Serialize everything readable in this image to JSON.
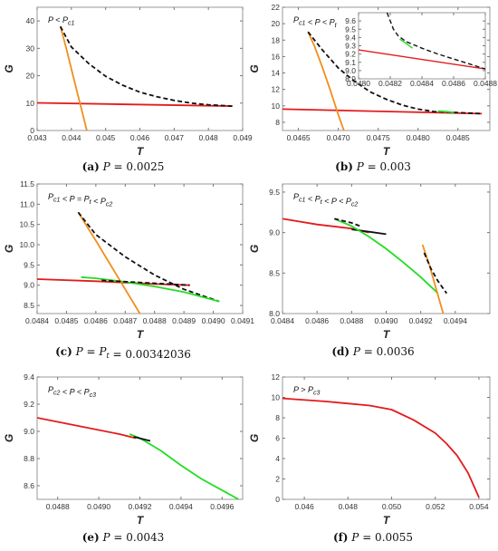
{
  "colors": {
    "red": "#e41a1c",
    "orange": "#f28e1c",
    "green": "#22dd22",
    "black": "#111111",
    "frame": "#999999"
  },
  "chart_data": [
    {
      "type": "line",
      "panel": "a",
      "caption": {
        "letter": "(a)",
        "text": "P = 0.0025"
      },
      "annotation": "P < Pc1",
      "xlabel": "T",
      "ylabel": "G",
      "xlim": [
        0.043,
        0.049
      ],
      "ylim": [
        0,
        45
      ],
      "xticks": [
        "0.043",
        "0.044",
        "0.045",
        "0.046",
        "0.047",
        "0.048",
        "0.049"
      ],
      "yticks": [
        "0",
        "10",
        "20",
        "30",
        "40"
      ],
      "series": [
        {
          "color": "red",
          "dash": false,
          "x": [
            0.043,
            0.0487
          ],
          "y": [
            10.1,
            8.9
          ]
        },
        {
          "color": "orange",
          "dash": false,
          "x": [
            0.04368,
            0.04385,
            0.044,
            0.04415,
            0.0443,
            0.04445
          ],
          "y": [
            38,
            30,
            22.5,
            15,
            7.5,
            0
          ]
        },
        {
          "color": "black",
          "dash": true,
          "x": [
            0.04368,
            0.044,
            0.0445,
            0.045,
            0.0455,
            0.046,
            0.0465,
            0.047,
            0.0475,
            0.048,
            0.0487
          ],
          "y": [
            38,
            30.5,
            24.5,
            19.8,
            16.5,
            14,
            12.3,
            11,
            10,
            9.4,
            8.9
          ]
        }
      ]
    },
    {
      "type": "line",
      "panel": "b",
      "caption": {
        "letter": "(b)",
        "text": "P = 0.003"
      },
      "annotation": "Pc1 < P < Pt",
      "xlabel": "T",
      "ylabel": "G",
      "xlim": [
        0.0463,
        0.0489
      ],
      "ylim": [
        7,
        22
      ],
      "xticks": [
        "0.0465",
        "0.0470",
        "0.0475",
        "0.0480",
        "0.0485"
      ],
      "yticks": [
        "8",
        "10",
        "12",
        "14",
        "16",
        "18",
        "20",
        "22"
      ],
      "series": [
        {
          "color": "red",
          "dash": false,
          "x": [
            0.0463,
            0.0488
          ],
          "y": [
            9.6,
            9.05
          ]
        },
        {
          "color": "orange",
          "dash": false,
          "x": [
            0.04662,
            0.0467,
            0.0468,
            0.0469,
            0.047,
            0.04707
          ],
          "y": [
            19,
            17.3,
            14.7,
            11.9,
            8.9,
            7
          ]
        },
        {
          "color": "black",
          "dash": true,
          "x": [
            0.04662,
            0.0468,
            0.047,
            0.0472,
            0.0474,
            0.0476,
            0.0478,
            0.048,
            0.0482,
            0.0488
          ],
          "y": [
            19,
            16.8,
            14.6,
            13,
            11.7,
            10.8,
            10.1,
            9.6,
            9.3,
            9.05
          ]
        },
        {
          "color": "green",
          "dash": false,
          "x": [
            0.04825,
            0.04835,
            0.04845
          ],
          "y": [
            9.35,
            9.3,
            9.2
          ]
        }
      ],
      "inset": {
        "xlim": [
          0.048,
          0.0488
        ],
        "ylim": [
          8.9,
          9.7
        ],
        "xticks": [
          "0.0480",
          "0.0482",
          "0.0484",
          "0.0486",
          "0.0488"
        ],
        "yticks": [
          "8.9",
          "9.0",
          "9.1",
          "9.2",
          "9.3",
          "9.4",
          "9.5",
          "9.6"
        ],
        "series": [
          {
            "color": "red",
            "dash": false,
            "x": [
              0.048,
              0.0488
            ],
            "y": [
              9.25,
              9.02
            ]
          },
          {
            "color": "black",
            "dash": true,
            "x": [
              0.04818,
              0.0482,
              0.04822,
              0.04825,
              0.0483,
              0.0484,
              0.0485,
              0.0486,
              0.0487,
              0.0488
            ],
            "y": [
              9.7,
              9.6,
              9.5,
              9.42,
              9.35,
              9.27,
              9.2,
              9.14,
              9.08,
              9.02
            ]
          },
          {
            "color": "green",
            "dash": false,
            "x": [
              0.04826,
              0.0483,
              0.04834
            ],
            "y": [
              9.38,
              9.33,
              9.27
            ]
          }
        ]
      }
    },
    {
      "type": "line",
      "panel": "c",
      "caption": {
        "letter": "(c)",
        "text": "P = Pt = 0.00342036"
      },
      "annotation": "Pc1 < P = Pt < Pc2",
      "xlabel": "T",
      "ylabel": "G",
      "xlim": [
        0.0484,
        0.0491
      ],
      "ylim": [
        8.3,
        11.5
      ],
      "xticks": [
        "0.0484",
        "0.0485",
        "0.0486",
        "0.0487",
        "0.0488",
        "0.0489",
        "0.0490",
        "0.0491"
      ],
      "yticks": [
        "8.5",
        "9.0",
        "9.5",
        "10.0",
        "10.5",
        "11.0",
        "11.5"
      ],
      "series": [
        {
          "color": "red",
          "dash": false,
          "x": [
            0.0484,
            0.0486,
            0.0488,
            0.04892
          ],
          "y": [
            9.15,
            9.1,
            9.03,
            9.0
          ]
        },
        {
          "color": "orange",
          "dash": false,
          "x": [
            0.04854,
            0.0486,
            0.04865,
            0.0487,
            0.04875
          ],
          "y": [
            10.8,
            10.1,
            9.5,
            8.9,
            8.3
          ]
        },
        {
          "color": "black",
          "dash": true,
          "x": [
            0.04854,
            0.0486,
            0.0487,
            0.0488,
            0.0489,
            0.04902
          ],
          "y": [
            10.8,
            10.25,
            9.7,
            9.25,
            8.9,
            8.6
          ]
        },
        {
          "color": "green",
          "dash": false,
          "x": [
            0.04855,
            0.0486,
            0.0487,
            0.0488,
            0.0489,
            0.04902
          ],
          "y": [
            9.2,
            9.17,
            9.08,
            8.97,
            8.83,
            8.6
          ]
        },
        {
          "color": "black",
          "dash": true,
          "x": [
            0.04862,
            0.04892
          ],
          "y": [
            9.12,
            9.0
          ]
        }
      ]
    },
    {
      "type": "line",
      "panel": "d",
      "caption": {
        "letter": "(d)",
        "text": "P = 0.0036"
      },
      "annotation": "Pc1 < Pt < P < Pc2",
      "xlabel": "T",
      "ylabel": "G",
      "xlim": [
        0.0484,
        0.0496
      ],
      "ylim": [
        8.0,
        9.6
      ],
      "xticks": [
        "0.0484",
        "0.0486",
        "0.0488",
        "0.0490",
        "0.0492",
        "0.0494"
      ],
      "yticks": [
        "8.0",
        "8.5",
        "9.0",
        "9.5"
      ],
      "series": [
        {
          "color": "red",
          "dash": false,
          "x": [
            0.0484,
            0.0486,
            0.0488,
            0.0489
          ],
          "y": [
            9.17,
            9.1,
            9.05,
            9.0
          ]
        },
        {
          "color": "black",
          "dash": false,
          "x": [
            0.0488,
            0.0489,
            0.049
          ],
          "y": [
            9.04,
            9.01,
            8.98
          ]
        },
        {
          "color": "green",
          "dash": false,
          "x": [
            0.0487,
            0.0488,
            0.0489,
            0.049,
            0.0491,
            0.0492,
            0.0493
          ],
          "y": [
            9.17,
            9.08,
            8.95,
            8.8,
            8.63,
            8.45,
            8.25
          ]
        },
        {
          "color": "black",
          "dash": true,
          "x": [
            0.0487,
            0.0488,
            0.04885
          ],
          "y": [
            9.17,
            9.12,
            9.08
          ]
        },
        {
          "color": "orange",
          "dash": false,
          "x": [
            0.04921,
            0.04925,
            0.04929,
            0.04933
          ],
          "y": [
            8.85,
            8.6,
            8.3,
            8.0
          ]
        },
        {
          "color": "black",
          "dash": true,
          "x": [
            0.04922,
            0.04926,
            0.0493,
            0.04935
          ],
          "y": [
            8.75,
            8.55,
            8.4,
            8.25
          ]
        }
      ]
    },
    {
      "type": "line",
      "panel": "e",
      "caption": {
        "letter": "(e)",
        "text": "P = 0.0043"
      },
      "annotation": "Pc2 < P < Pc3",
      "xlabel": "T",
      "ylabel": "G",
      "xlim": [
        0.0487,
        0.0497
      ],
      "ylim": [
        8.5,
        9.4
      ],
      "xticks": [
        "0.0488",
        "0.0490",
        "0.0492",
        "0.0494",
        "0.0496"
      ],
      "yticks": [
        "8.6",
        "8.8",
        "9.0",
        "9.2",
        "9.4"
      ],
      "series": [
        {
          "color": "red",
          "dash": false,
          "x": [
            0.0487,
            0.0489,
            0.0491,
            0.04918
          ],
          "y": [
            9.1,
            9.04,
            8.98,
            8.95
          ]
        },
        {
          "color": "green",
          "dash": false,
          "x": [
            0.04915,
            0.0492,
            0.0493,
            0.0494,
            0.0495,
            0.04968
          ],
          "y": [
            8.98,
            8.95,
            8.86,
            8.75,
            8.65,
            8.5
          ]
        },
        {
          "color": "black",
          "dash": false,
          "x": [
            0.04917,
            0.04925
          ],
          "y": [
            8.96,
            8.93
          ]
        }
      ]
    },
    {
      "type": "line",
      "panel": "f",
      "caption": {
        "letter": "(f)",
        "text": "P = 0.0055"
      },
      "annotation": "P > Pc3",
      "xlabel": "T",
      "ylabel": "G",
      "xlim": [
        0.045,
        0.0545
      ],
      "ylim": [
        0,
        12
      ],
      "xticks": [
        "0.046",
        "0.048",
        "0.050",
        "0.052",
        "0.054"
      ],
      "yticks": [
        "0",
        "2",
        "4",
        "6",
        "8",
        "10",
        "12"
      ],
      "series": [
        {
          "color": "red",
          "dash": false,
          "x": [
            0.045,
            0.047,
            0.049,
            0.05,
            0.051,
            0.052,
            0.0525,
            0.053,
            0.0535,
            0.054
          ],
          "y": [
            9.9,
            9.6,
            9.2,
            8.8,
            7.8,
            6.5,
            5.5,
            4.3,
            2.6,
            0.2
          ]
        }
      ]
    }
  ]
}
